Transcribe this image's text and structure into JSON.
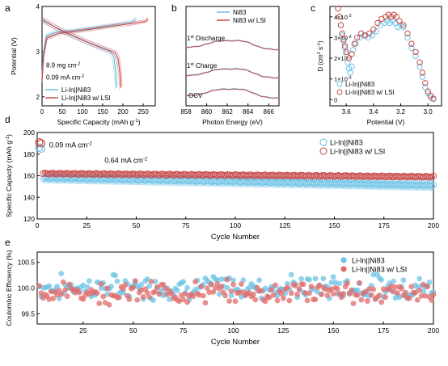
{
  "panels": {
    "a": "a",
    "b": "b",
    "c": "c",
    "d": "d",
    "e": "e"
  },
  "chart_data": [
    {
      "id": "a",
      "type": "line",
      "xlabel": "Specific Capacity (mAh g",
      "xlabel_sup": "-1",
      "xlabel_end": ")",
      "ylabel": "Potential (V)",
      "xlim": [
        0,
        280
      ],
      "ylim": [
        1.8,
        4.0
      ],
      "xticks": [
        0,
        50,
        100,
        150,
        200,
        250
      ],
      "yticks": [
        2,
        3,
        4
      ],
      "annotations": [
        "8.9 mg cm",
        "0.09 mA cm"
      ],
      "annotation_sups": [
        "-2",
        "-2"
      ],
      "series": [
        {
          "name": "Li-In||Ni83",
          "color": "#6fc3e6",
          "charge": [
            [
              0,
              2.42
            ],
            [
              3,
              2.95
            ],
            [
              10,
              3.35
            ],
            [
              30,
              3.42
            ],
            [
              80,
              3.47
            ],
            [
              130,
              3.53
            ],
            [
              180,
              3.6
            ],
            [
              220,
              3.65
            ],
            [
              232,
              3.72
            ]
          ],
          "discharge": [
            [
              0,
              3.7
            ],
            [
              20,
              3.6
            ],
            [
              50,
              3.45
            ],
            [
              100,
              3.25
            ],
            [
              140,
              3.1
            ],
            [
              170,
              3.0
            ],
            [
              178,
              2.85
            ],
            [
              182,
              2.5
            ],
            [
              184,
              2.2
            ]
          ]
        },
        {
          "name": "Li-In||Ni83 w/ LSI",
          "color": "#c94a4a",
          "charge": [
            [
              0,
              2.35
            ],
            [
              4,
              2.9
            ],
            [
              12,
              3.3
            ],
            [
              40,
              3.4
            ],
            [
              100,
              3.47
            ],
            [
              160,
              3.55
            ],
            [
              220,
              3.62
            ],
            [
              255,
              3.67
            ],
            [
              262,
              3.72
            ]
          ],
          "discharge": [
            [
              0,
              3.72
            ],
            [
              25,
              3.58
            ],
            [
              60,
              3.42
            ],
            [
              110,
              3.22
            ],
            [
              150,
              3.08
            ],
            [
              180,
              2.98
            ],
            [
              188,
              2.85
            ],
            [
              193,
              2.5
            ],
            [
              195,
              2.2
            ]
          ]
        }
      ]
    },
    {
      "id": "b",
      "type": "line",
      "xlabel": "Photon Energy (eV)",
      "xlim": [
        858,
        867
      ],
      "xticks": [
        858,
        860,
        862,
        864,
        866
      ],
      "curve_labels": [
        "Discharge",
        "Charge",
        "OCV"
      ],
      "curve_label_prefix": [
        "1",
        "1",
        ""
      ],
      "curve_label_sups": [
        "st",
        "st",
        ""
      ],
      "series": [
        {
          "name": "Ni83",
          "color": "#6fc3e6"
        },
        {
          "name": "Ni83 w/ LSI",
          "color": "#c94a4a"
        }
      ]
    },
    {
      "id": "c",
      "type": "scatter",
      "xlabel": "Potential (V)",
      "ylabel": "D (cm",
      "ylabel_sup": "2",
      "ylabel_mid": " s",
      "ylabel_sup2": "-1",
      "ylabel_end": ")",
      "xlim": [
        3.72,
        2.9
      ],
      "ylim": [
        -0.0003,
        0.0045
      ],
      "xticks": [
        3.6,
        3.4,
        3.2,
        3.0
      ],
      "xtick_labels": [
        "3.6",
        "3.4",
        "3.2",
        "3.0"
      ],
      "yticks": [
        0,
        0.001,
        0.002,
        0.003,
        0.004
      ],
      "ytick_mant": [
        "0",
        "1",
        "2",
        "3",
        "4"
      ],
      "ytick_x": "×10",
      "ytick_exp": "-3",
      "series": [
        {
          "name": "Li-In||Ni83",
          "color": "#6fc3e6",
          "points": [
            [
              3.64,
              0.0036
            ],
            [
              3.63,
              0.0031
            ],
            [
              3.62,
              0.0028
            ],
            [
              3.61,
              0.0025
            ],
            [
              3.6,
              0.0022
            ],
            [
              3.59,
              0.0018
            ],
            [
              3.58,
              0.0015
            ],
            [
              3.57,
              0.0013
            ],
            [
              3.56,
              0.0016
            ],
            [
              3.55,
              0.0024
            ],
            [
              3.53,
              0.0027
            ],
            [
              3.5,
              0.003
            ],
            [
              3.47,
              0.0031
            ],
            [
              3.44,
              0.003
            ],
            [
              3.41,
              0.0031
            ],
            [
              3.38,
              0.0033
            ],
            [
              3.35,
              0.0036
            ],
            [
              3.32,
              0.0037
            ],
            [
              3.3,
              0.0038
            ],
            [
              3.28,
              0.0037
            ],
            [
              3.26,
              0.0038
            ],
            [
              3.24,
              0.0037
            ],
            [
              3.22,
              0.0035
            ],
            [
              3.2,
              0.0036
            ],
            [
              3.18,
              0.0035
            ],
            [
              3.15,
              0.003
            ],
            [
              3.12,
              0.0025
            ],
            [
              3.09,
              0.0021
            ],
            [
              3.06,
              0.0016
            ],
            [
              3.04,
              0.0011
            ],
            [
              3.02,
              0.0006
            ],
            [
              3.0,
              0.0003
            ],
            [
              2.98,
              0.0001
            ],
            [
              2.96,
              3e-05
            ]
          ]
        },
        {
          "name": "Li-In||Ni83 w/ LSI",
          "color": "#c94a4a",
          "points": [
            [
              3.66,
              0.0044
            ],
            [
              3.65,
              0.004
            ],
            [
              3.64,
              0.0036
            ],
            [
              3.63,
              0.0032
            ],
            [
              3.62,
              0.0029
            ],
            [
              3.61,
              0.0026
            ],
            [
              3.6,
              0.0023
            ],
            [
              3.58,
              0.002
            ],
            [
              3.56,
              0.0022
            ],
            [
              3.54,
              0.0027
            ],
            [
              3.52,
              0.003
            ],
            [
              3.49,
              0.0032
            ],
            [
              3.46,
              0.0031
            ],
            [
              3.43,
              0.0032
            ],
            [
              3.4,
              0.0034
            ],
            [
              3.37,
              0.0037
            ],
            [
              3.34,
              0.0039
            ],
            [
              3.31,
              0.004
            ],
            [
              3.29,
              0.0041
            ],
            [
              3.27,
              0.004
            ],
            [
              3.25,
              0.0041
            ],
            [
              3.23,
              0.004
            ],
            [
              3.21,
              0.0038
            ],
            [
              3.18,
              0.0036
            ],
            [
              3.15,
              0.0032
            ],
            [
              3.12,
              0.0027
            ],
            [
              3.09,
              0.0023
            ],
            [
              3.06,
              0.0018
            ],
            [
              3.04,
              0.0013
            ],
            [
              3.02,
              0.0008
            ],
            [
              3.0,
              0.0004
            ],
            [
              2.98,
              0.0002
            ],
            [
              2.96,
              5e-05
            ]
          ]
        }
      ]
    },
    {
      "id": "d",
      "type": "scatter",
      "xlabel": "Cycle Number",
      "ylabel": "Specific Capacity (mAh g",
      "ylabel_sup": "-1",
      "ylabel_end": ")",
      "xlim": [
        0,
        200
      ],
      "ylim": [
        120,
        200
      ],
      "xticks": [
        0,
        25,
        50,
        75,
        100,
        125,
        150,
        175,
        200
      ],
      "yticks": [
        120,
        140,
        160,
        180,
        200
      ],
      "annotations": [
        "0.09 mA cm",
        "0.64 mA cm"
      ],
      "annotation_sups": [
        "-2",
        "-2"
      ],
      "series": [
        {
          "name": "Li-In||Ni83",
          "color": "#6fc3e6",
          "first_cycles": [
            186,
            185
          ],
          "start": 158,
          "end": 151,
          "band": 5
        },
        {
          "name": "Li-In||Ni83 w/ LSI",
          "color": "#c94a4a",
          "first_cycles": [
            191,
            190
          ],
          "start": 162,
          "end": 159,
          "band": 3
        }
      ]
    },
    {
      "id": "e",
      "type": "scatter",
      "xlabel": "Cycle Number",
      "ylabel": "Coulombic Efficiency (%)",
      "xlim": [
        2,
        200
      ],
      "ylim": [
        99.3,
        100.7
      ],
      "xticks": [
        25,
        50,
        75,
        100,
        125,
        150,
        175,
        200
      ],
      "yticks": [
        99.5,
        100.0,
        100.5
      ],
      "ytick_labels": [
        "99.5",
        "100.0",
        "100.5"
      ],
      "series": [
        {
          "name": "Li-In||Ni83",
          "color": "#6fc3e6",
          "mean": 100.02,
          "spread": 0.18
        },
        {
          "name": "Li-In||Ni83 w/ LSI",
          "color": "#e06b6b",
          "mean": 99.92,
          "spread": 0.16
        }
      ]
    }
  ]
}
